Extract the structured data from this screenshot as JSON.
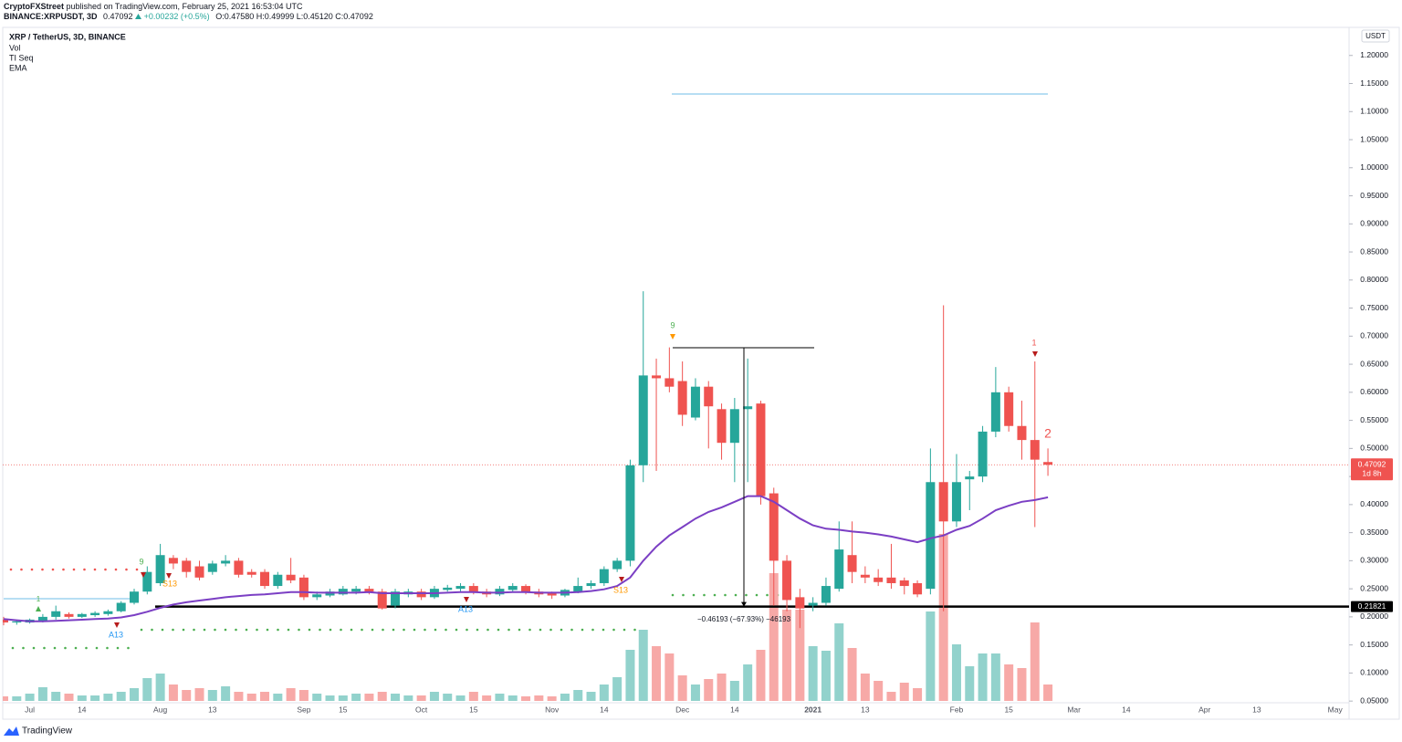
{
  "header": {
    "author": "CryptoFXStreet",
    "published": "published on TradingView.com, February 25, 2021 16:53:04 UTC",
    "symbol": "BINANCE:XRPUSDT, 3D",
    "change": "+0.00232 (+0.5%)",
    "ohlc": "O:0.47580 H:0.49999 L:0.45120 C:0.47092"
  },
  "footer": {
    "brand": "TradingView"
  },
  "chart_data": {
    "type": "candlestick",
    "title": "XRP / TetherUS, 3D, BINANCE",
    "categories": [
      null,
      null,
      "Jul",
      null,
      null,
      null,
      "14",
      null,
      null,
      null,
      null,
      null,
      "Aug",
      null,
      null,
      null,
      "13",
      null,
      null,
      null,
      null,
      null,
      null,
      "Sep",
      null,
      null,
      "15",
      null,
      null,
      null,
      null,
      null,
      "Oct",
      null,
      null,
      null,
      "15",
      null,
      null,
      null,
      null,
      null,
      "Nov",
      null,
      null,
      null,
      "14",
      null,
      null,
      null,
      null,
      null,
      "Dec",
      null,
      null,
      null,
      "14",
      null,
      null,
      null,
      null,
      null,
      "2021",
      null,
      null,
      null,
      "13",
      null,
      null,
      null,
      null,
      null,
      null,
      "Feb",
      null,
      null,
      null,
      "15",
      null,
      null,
      null,
      null,
      "Mar",
      null,
      null,
      null,
      "14",
      null,
      null,
      null,
      null,
      null,
      "Apr",
      null,
      null,
      null,
      "13",
      null,
      null,
      null,
      null,
      null,
      "May",
      null
    ],
    "open": [
      0.195,
      0.19,
      0.19,
      0.193,
      0.2,
      0.205,
      0.2,
      0.203,
      0.205,
      0.21,
      0.225,
      0.245,
      0.26,
      0.305,
      0.3,
      0.29,
      0.28,
      0.295,
      0.3,
      0.28,
      0.28,
      0.255,
      0.275,
      0.27,
      0.235,
      0.238,
      0.24,
      0.245,
      0.25,
      0.245,
      0.22,
      0.24,
      0.245,
      0.235,
      0.248,
      0.25,
      0.255,
      0.245,
      0.24,
      0.248,
      0.255,
      0.245,
      0.242,
      0.238,
      0.245,
      0.255,
      0.26,
      0.285,
      0.3,
      0.47,
      0.63,
      0.625,
      0.62,
      0.555,
      0.61,
      0.57,
      0.51,
      0.57,
      0.58,
      0.42,
      0.3,
      0.235,
      0.22,
      0.225,
      0.25,
      0.31,
      0.275,
      0.27,
      0.27,
      0.265,
      0.26,
      0.25,
      0.44,
      0.37,
      0.445,
      0.45,
      0.53,
      0.6,
      0.54,
      0.515,
      0.4758,
      null,
      null,
      null,
      null,
      null,
      null,
      null,
      null,
      null,
      null,
      null,
      null,
      null,
      null,
      null,
      null,
      null,
      null,
      null,
      null,
      null,
      null,
      null
    ],
    "high": [
      0.2,
      0.195,
      0.197,
      0.205,
      0.22,
      0.208,
      0.207,
      0.21,
      0.213,
      0.228,
      0.25,
      0.29,
      0.33,
      0.31,
      0.305,
      0.3,
      0.3,
      0.31,
      0.305,
      0.285,
      0.285,
      0.28,
      0.305,
      0.275,
      0.245,
      0.25,
      0.255,
      0.255,
      0.255,
      0.25,
      0.25,
      0.25,
      0.25,
      0.255,
      0.257,
      0.26,
      0.26,
      0.25,
      0.255,
      0.26,
      0.258,
      0.25,
      0.245,
      0.25,
      0.27,
      0.265,
      0.29,
      0.305,
      0.48,
      0.78,
      0.66,
      0.68,
      0.655,
      0.625,
      0.62,
      0.58,
      0.59,
      0.66,
      0.585,
      0.43,
      0.31,
      0.25,
      0.235,
      0.27,
      0.37,
      0.37,
      0.29,
      0.285,
      0.33,
      0.27,
      0.265,
      0.5,
      0.755,
      0.49,
      0.46,
      0.54,
      0.645,
      0.61,
      0.585,
      0.655,
      0.49999,
      null,
      null,
      null,
      null,
      null,
      null,
      null,
      null,
      null,
      null,
      null,
      null,
      null,
      null,
      null,
      null,
      null,
      null,
      null,
      null,
      null,
      null,
      null
    ],
    "low": [
      0.185,
      0.186,
      0.188,
      0.19,
      0.195,
      0.197,
      0.198,
      0.2,
      0.202,
      0.208,
      0.222,
      0.24,
      0.255,
      0.285,
      0.27,
      0.265,
      0.275,
      0.29,
      0.27,
      0.27,
      0.25,
      0.25,
      0.26,
      0.23,
      0.23,
      0.235,
      0.238,
      0.24,
      0.24,
      0.213,
      0.215,
      0.235,
      0.23,
      0.232,
      0.245,
      0.245,
      0.24,
      0.235,
      0.237,
      0.245,
      0.24,
      0.235,
      0.232,
      0.235,
      0.242,
      0.25,
      0.255,
      0.28,
      0.29,
      0.44,
      0.46,
      0.6,
      0.54,
      0.55,
      0.5,
      0.48,
      0.44,
      0.44,
      0.4,
      0.22,
      0.21,
      0.18,
      0.21,
      0.22,
      0.245,
      0.26,
      0.26,
      0.255,
      0.25,
      0.24,
      0.235,
      0.24,
      0.21,
      0.36,
      0.39,
      0.44,
      0.52,
      0.53,
      0.48,
      0.36,
      0.4512,
      null,
      null,
      null,
      null,
      null,
      null,
      null,
      null,
      null,
      null,
      null,
      null,
      null,
      null,
      null,
      null,
      null,
      null,
      null,
      null,
      null,
      null,
      null
    ],
    "close": [
      0.19,
      0.192,
      0.195,
      0.2,
      0.21,
      0.2,
      0.205,
      0.207,
      0.21,
      0.225,
      0.245,
      0.28,
      0.31,
      0.295,
      0.28,
      0.27,
      0.295,
      0.3,
      0.275,
      0.275,
      0.255,
      0.275,
      0.265,
      0.235,
      0.24,
      0.245,
      0.25,
      0.25,
      0.245,
      0.215,
      0.245,
      0.245,
      0.235,
      0.25,
      0.252,
      0.255,
      0.243,
      0.24,
      0.25,
      0.255,
      0.245,
      0.24,
      0.238,
      0.248,
      0.255,
      0.26,
      0.285,
      0.3,
      0.47,
      0.63,
      0.625,
      0.61,
      0.56,
      0.61,
      0.575,
      0.51,
      0.57,
      0.575,
      0.415,
      0.3,
      0.23,
      0.215,
      0.225,
      0.255,
      0.32,
      0.28,
      0.27,
      0.262,
      0.26,
      0.255,
      0.24,
      0.44,
      0.37,
      0.44,
      0.45,
      0.53,
      0.6,
      0.54,
      0.515,
      0.48,
      0.47092,
      null,
      null,
      null,
      null,
      null,
      null,
      null,
      null,
      null,
      null,
      null,
      null,
      null,
      null,
      null,
      null,
      null,
      null,
      null,
      null,
      null,
      null,
      null
    ],
    "up_color": "#26a69a",
    "down_color": "#ef5350",
    "volume": {
      "name": "Vol",
      "up_color": "#92d2cc",
      "down_color": "#f7a9a7",
      "values": [
        5,
        5,
        8,
        15,
        10,
        8,
        6,
        6,
        8,
        10,
        14,
        25,
        30,
        18,
        12,
        14,
        12,
        16,
        10,
        8,
        10,
        8,
        14,
        12,
        8,
        6,
        6,
        8,
        8,
        10,
        8,
        6,
        6,
        10,
        8,
        6,
        10,
        6,
        8,
        6,
        5,
        6,
        5,
        8,
        12,
        10,
        18,
        26,
        56,
        78,
        60,
        52,
        28,
        18,
        24,
        30,
        22,
        40,
        56,
        140,
        100,
        100,
        60,
        55,
        85,
        58,
        30,
        22,
        10,
        20,
        14,
        98,
        183,
        62,
        38,
        52,
        52,
        40,
        36,
        86,
        18,
        null,
        null,
        null,
        null,
        null,
        null,
        null,
        null,
        null,
        null,
        null,
        null,
        null,
        null,
        null,
        null,
        null,
        null,
        null,
        null,
        null,
        null,
        null
      ]
    },
    "ema": {
      "name": "EMA",
      "color": "#7b3fc4",
      "values": [
        0.196,
        0.194,
        0.192,
        0.192,
        0.193,
        0.194,
        0.195,
        0.196,
        0.197,
        0.199,
        0.203,
        0.209,
        0.216,
        0.222,
        0.226,
        0.229,
        0.232,
        0.235,
        0.237,
        0.239,
        0.24,
        0.242,
        0.244,
        0.244,
        0.243,
        0.243,
        0.243,
        0.243,
        0.244,
        0.242,
        0.242,
        0.242,
        0.242,
        0.242,
        0.243,
        0.244,
        0.244,
        0.243,
        0.243,
        0.244,
        0.244,
        0.243,
        0.243,
        0.243,
        0.244,
        0.246,
        0.249,
        0.255,
        0.27,
        0.3,
        0.325,
        0.345,
        0.36,
        0.375,
        0.387,
        0.395,
        0.405,
        0.415,
        0.415,
        0.405,
        0.39,
        0.375,
        0.363,
        0.357,
        0.355,
        0.352,
        0.35,
        0.347,
        0.343,
        0.338,
        0.333,
        0.34,
        0.345,
        0.355,
        0.362,
        0.375,
        0.39,
        0.398,
        0.405,
        0.408,
        0.413,
        null,
        null,
        null,
        null,
        null,
        null,
        null,
        null,
        null,
        null,
        null,
        null,
        null,
        null,
        null,
        null,
        null,
        null,
        null,
        null,
        null,
        null,
        null
      ]
    },
    "td": {
      "name": "TI Seq",
      "labels": [
        {
          "text": "1",
          "color": "#4caf50"
        },
        {
          "text": "9",
          "color": "#4caf50"
        },
        {
          "text": "S13",
          "color": "#ff9800"
        },
        {
          "text": "A13",
          "color": "#2196f3"
        },
        {
          "text": "A13",
          "color": "#2196f3"
        },
        {
          "text": "S13",
          "color": "#ff9800"
        },
        {
          "text": "9",
          "color": "#4caf50"
        },
        {
          "text": "1",
          "color": "#ef5350"
        },
        {
          "text": "2",
          "color": "#ef5350"
        }
      ]
    },
    "ylim": [
      0.047,
      1.25
    ],
    "yticks": [
      {
        "value": 0.05,
        "label": "0.05000"
      },
      {
        "value": 0.1,
        "label": "0.10000"
      },
      {
        "value": 0.15,
        "label": "0.15000"
      },
      {
        "value": 0.2,
        "label": "0.20000"
      },
      {
        "value": 0.25,
        "label": "0.25000"
      },
      {
        "value": 0.3,
        "label": "0.30000"
      },
      {
        "value": 0.35,
        "label": "0.35000"
      },
      {
        "value": 0.4,
        "label": "0.40000"
      },
      {
        "value": 0.45,
        "label": "0.45000"
      },
      {
        "value": 0.5,
        "label": "0.50000"
      },
      {
        "value": 0.55,
        "label": "0.55000"
      },
      {
        "value": 0.6,
        "label": "0.60000"
      },
      {
        "value": 0.65,
        "label": "0.65000"
      },
      {
        "value": 0.7,
        "label": "0.70000"
      },
      {
        "value": 0.75,
        "label": "0.75000"
      },
      {
        "value": 0.8,
        "label": "0.80000"
      },
      {
        "value": 0.85,
        "label": "0.85000"
      },
      {
        "value": 0.9,
        "label": "0.90000"
      },
      {
        "value": 0.95,
        "label": "0.95000"
      },
      {
        "value": 1.0,
        "label": "1.00000"
      },
      {
        "value": 1.05,
        "label": "1.05000"
      },
      {
        "value": 1.1,
        "label": "1.10000"
      },
      {
        "value": 1.15,
        "label": "1.15000"
      },
      {
        "value": 1.2,
        "label": "1.20000"
      }
    ],
    "grid": false,
    "unit": "USDT",
    "last_price": 0.47092,
    "last_price_color": "#ef5350",
    "countdown": "1d 8h",
    "level": 0.21821,
    "measure_label": "−0.46193 (−67.93%) −46193"
  }
}
